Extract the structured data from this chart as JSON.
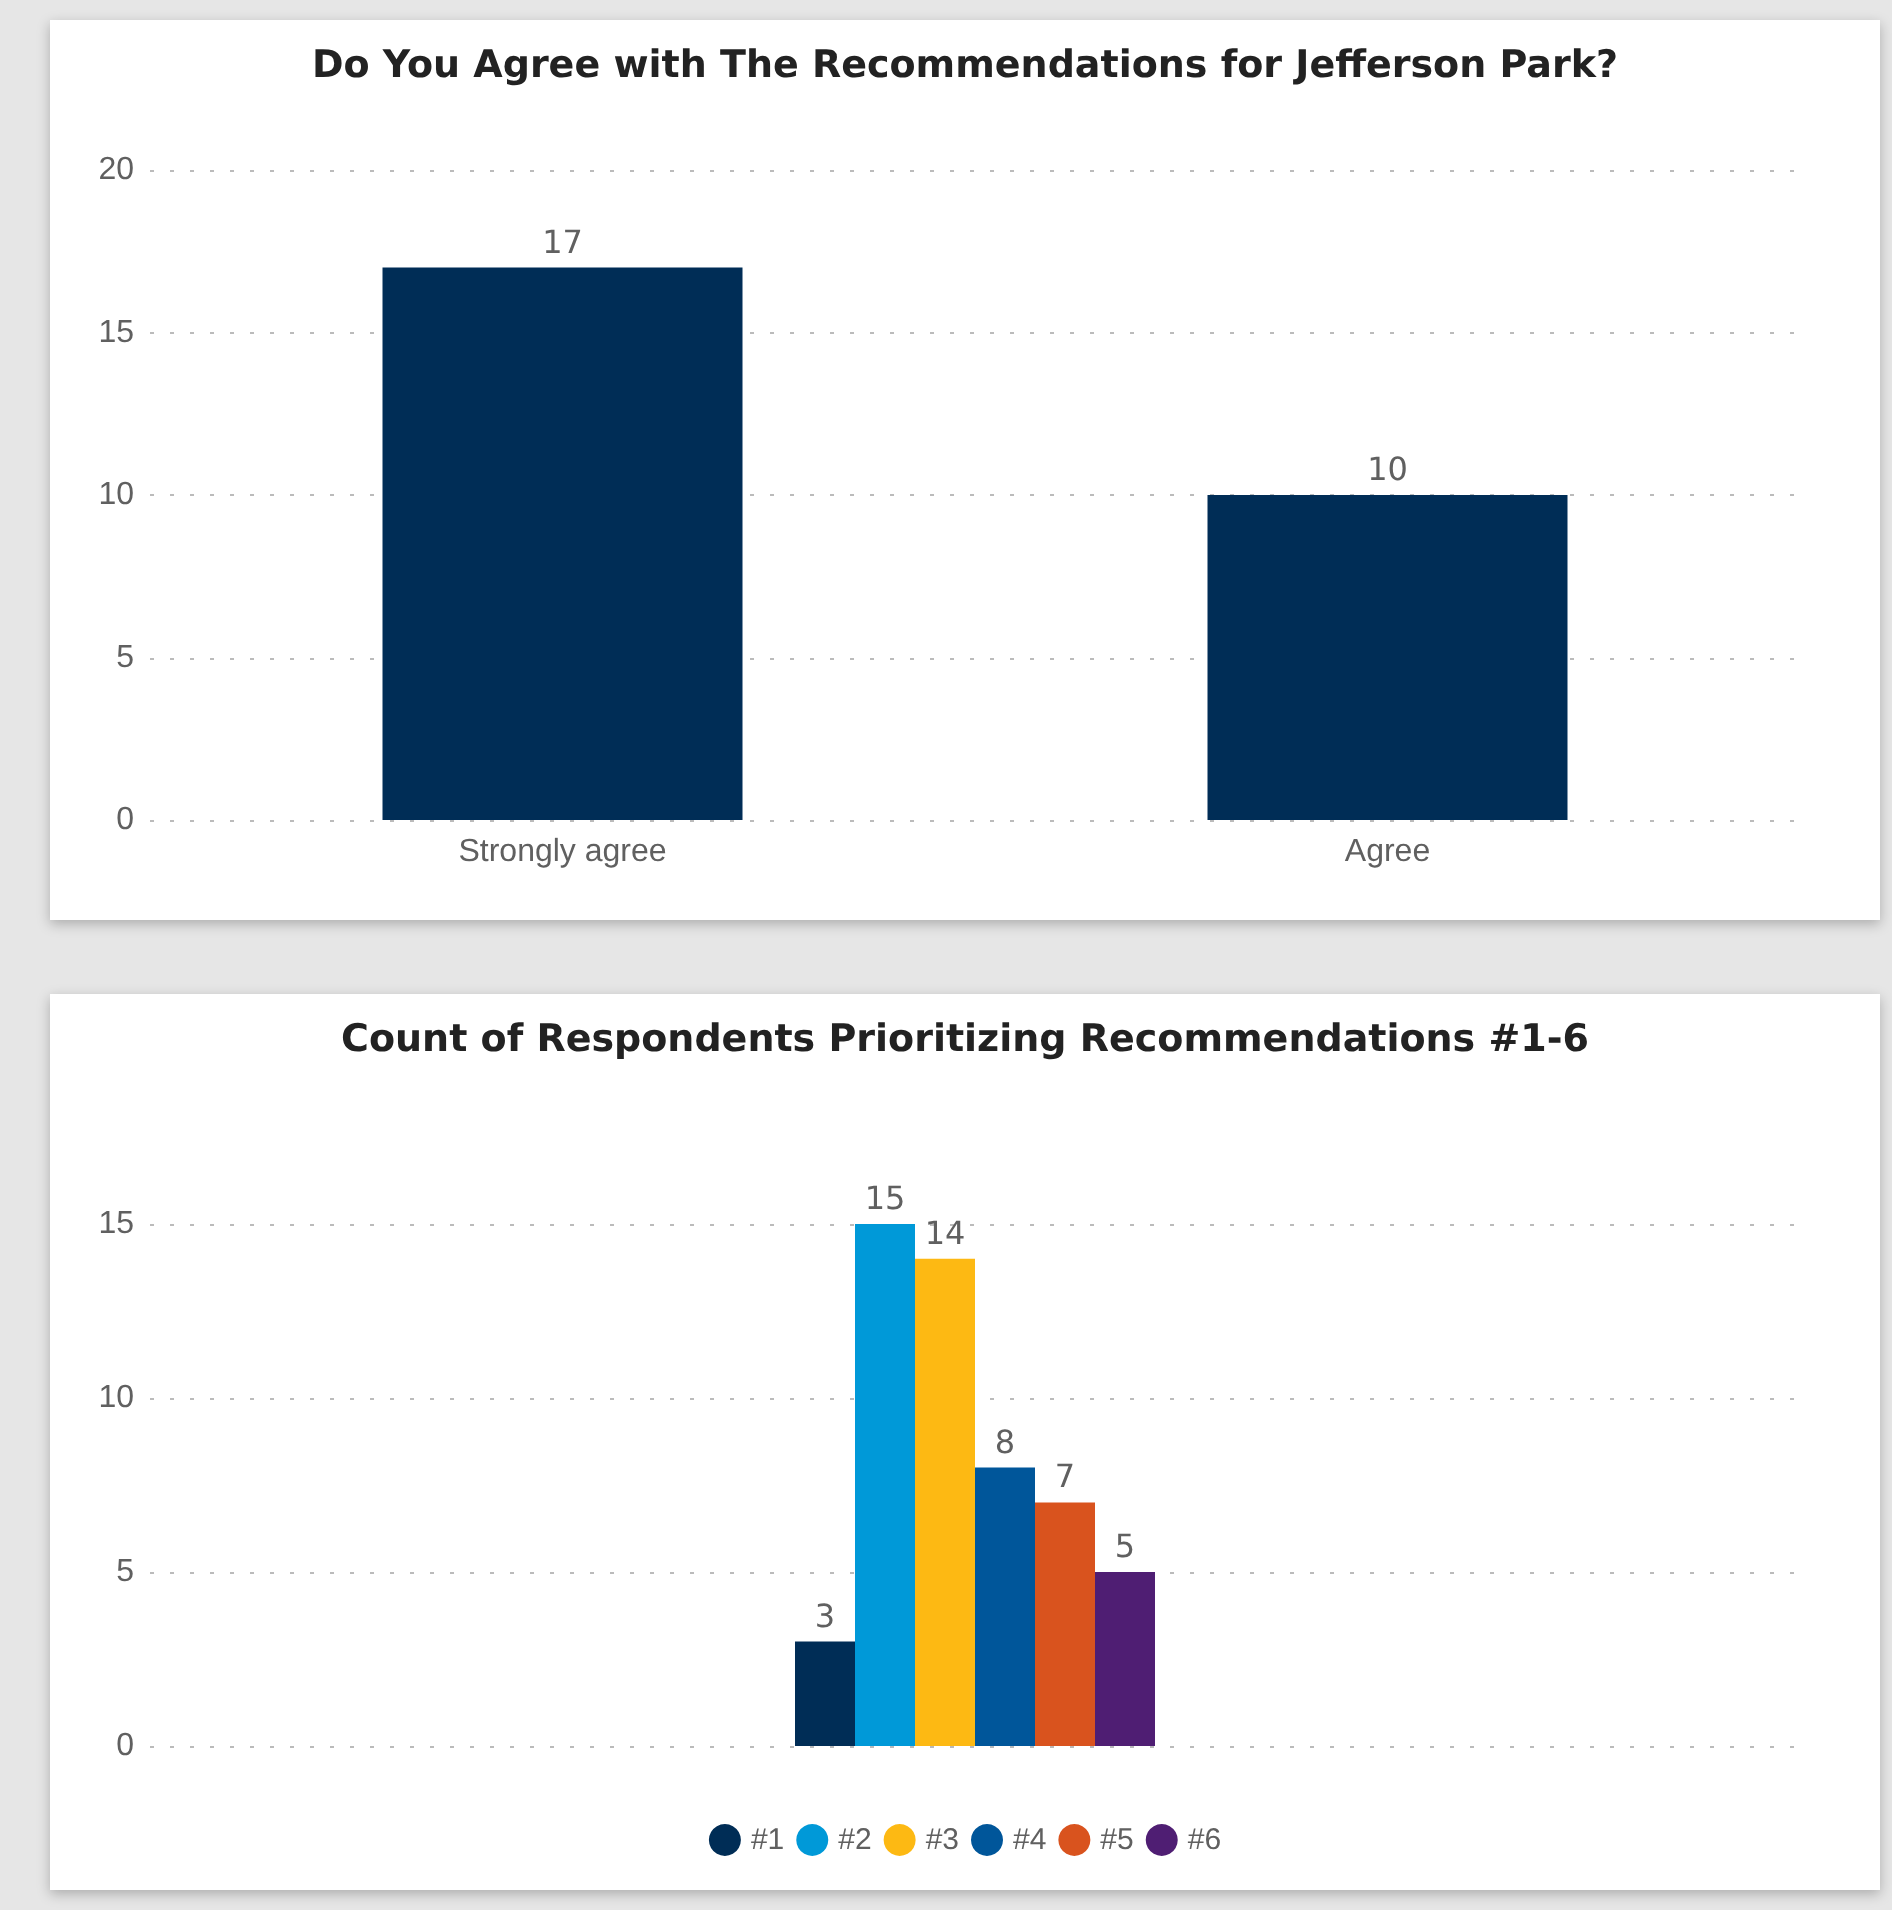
{
  "chart_data": [
    {
      "type": "bar",
      "title": "Do You Agree with The Recommendations for Jefferson Park?",
      "categories": [
        "Strongly agree",
        "Agree"
      ],
      "values": [
        17,
        10
      ],
      "color": "#002d56",
      "ylim": [
        0,
        20
      ],
      "yticks": [
        0,
        5,
        10,
        15,
        20
      ],
      "grid": "y",
      "data_labels": true
    },
    {
      "type": "bar",
      "title": "Count of Respondents Prioritizing Recommendations #1-6",
      "categories": [
        null
      ],
      "series": [
        {
          "name": "#1",
          "color": "#002d56",
          "values": [
            3
          ]
        },
        {
          "name": "#2",
          "color": "#0099d8",
          "values": [
            15
          ]
        },
        {
          "name": "#3",
          "color": "#fdb913",
          "values": [
            14
          ]
        },
        {
          "name": "#4",
          "color": "#00569a",
          "values": [
            8
          ]
        },
        {
          "name": "#5",
          "color": "#d9531e",
          "values": [
            7
          ]
        },
        {
          "name": "#6",
          "color": "#4f1e73",
          "values": [
            5
          ]
        }
      ],
      "ylim": [
        0,
        15
      ],
      "yticks": [
        0,
        5,
        10,
        15
      ],
      "grid": "y",
      "data_labels": true,
      "legend": "bottom"
    }
  ]
}
